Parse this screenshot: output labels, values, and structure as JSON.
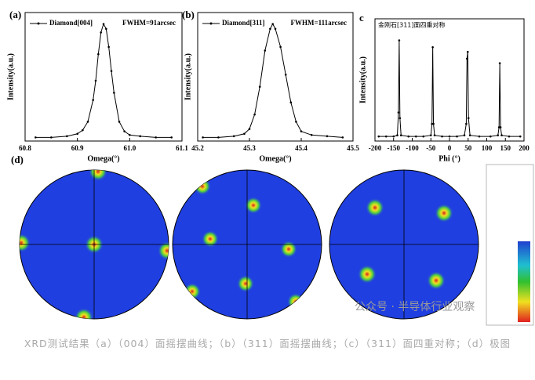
{
  "chart_data": [
    {
      "type": "line",
      "panel_label": "(a)",
      "xlabel": "Omega(°)",
      "ylabel": "Intensity(a.u.)",
      "annotation": "FWHM=91arcsec",
      "x": [
        60.82,
        60.85,
        60.88,
        60.9,
        60.91,
        60.92,
        60.93,
        60.935,
        60.94,
        60.945,
        60.95,
        60.955,
        60.96,
        60.965,
        60.97,
        60.98,
        60.99,
        61.0,
        61.02,
        61.05,
        61.08
      ],
      "series": [
        {
          "name": "Diamond[004]",
          "color": "#000000",
          "values": [
            0.03,
            0.03,
            0.04,
            0.06,
            0.09,
            0.16,
            0.34,
            0.5,
            0.72,
            0.9,
            0.97,
            0.93,
            0.78,
            0.58,
            0.4,
            0.16,
            0.08,
            0.05,
            0.04,
            0.03,
            0.03
          ]
        }
      ],
      "xlim": [
        60.8,
        61.1
      ],
      "ylim": [
        0,
        1
      ],
      "xticks": [
        60.8,
        60.9,
        {
          "value": 61,
          "label": "61.0"
        },
        61.1
      ]
    },
    {
      "type": "line",
      "panel_label": "(b)",
      "xlabel": "Omega(°)",
      "ylabel": "Intensity(a.u.)",
      "annotation": "FWHM=111arcsec",
      "x": [
        45.21,
        45.24,
        45.27,
        45.29,
        45.3,
        45.31,
        45.32,
        45.33,
        45.34,
        45.345,
        45.35,
        45.36,
        45.37,
        45.38,
        45.39,
        45.4,
        45.42,
        45.45,
        45.48
      ],
      "series": [
        {
          "name": "Diamond[311]",
          "color": "#000000",
          "values": [
            0.03,
            0.03,
            0.04,
            0.06,
            0.1,
            0.22,
            0.45,
            0.75,
            0.93,
            0.97,
            0.93,
            0.78,
            0.55,
            0.32,
            0.16,
            0.08,
            0.05,
            0.04,
            0.03
          ]
        }
      ],
      "xlim": [
        45.2,
        45.5
      ],
      "ylim": [
        0,
        1
      ],
      "xticks": [
        45.2,
        45.3,
        45.4,
        45.5
      ]
    },
    {
      "type": "line",
      "panel_label": "c",
      "title": "金刚石[311]面四重对称",
      "xlabel": "Phi (°)",
      "ylabel": "Intensity(a.u.)",
      "color": "#000000",
      "x": [
        -190,
        -170,
        -150,
        -140,
        -137,
        -135,
        -133,
        -130,
        -110,
        -90,
        -70,
        -50,
        -47,
        -45,
        -43,
        -40,
        -20,
        0,
        20,
        40,
        45,
        47,
        49,
        51,
        55,
        80,
        110,
        130,
        133,
        135,
        137,
        140,
        160,
        190
      ],
      "values": [
        0.04,
        0.04,
        0.04,
        0.05,
        0.25,
        0.88,
        0.2,
        0.05,
        0.04,
        0.04,
        0.04,
        0.05,
        0.15,
        0.82,
        0.15,
        0.05,
        0.04,
        0.04,
        0.04,
        0.05,
        0.15,
        0.72,
        0.78,
        0.2,
        0.05,
        0.04,
        0.04,
        0.05,
        0.12,
        0.68,
        0.12,
        0.05,
        0.04,
        0.04
      ],
      "xlim": [
        -200,
        200
      ],
      "ylim": [
        0,
        1
      ],
      "xticks": [
        -200,
        -150,
        -100,
        -50,
        0,
        50,
        100,
        150,
        200
      ]
    }
  ],
  "pole_figures": {
    "panel_label": "(d)"
  },
  "watermark": "公众号 · 半导体行业观察",
  "caption": "XRD测试结果（a）（004）面摇摆曲线；（b）（311）面摇摆曲线；（c）（311）面四重对称；（d）极图"
}
